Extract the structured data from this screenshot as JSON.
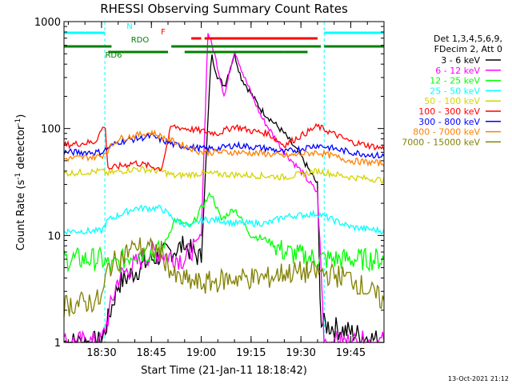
{
  "chart_data": {
    "type": "line",
    "title": "RHESSI Observing Summary Count Rates",
    "xlabel": "Start Time (21-Jan-11 18:18:42)",
    "ylabel": "Count Rate (s",
    "ylabel_sup": "-1",
    "ylabel_tail": " detector",
    "ylabel_sup2": "-1",
    "ylabel_end": ")",
    "y_scale": "log",
    "ylim": [
      1,
      1000
    ],
    "xlim": [
      "18:18:42",
      "19:55:00"
    ],
    "x_ticks": [
      "18:30",
      "18:45",
      "19:00",
      "19:15",
      "19:30",
      "19:45"
    ],
    "y_ticks": [
      "1",
      "10",
      "100",
      "1000"
    ],
    "footer_date": "13-Oct-2021 21:12",
    "legend_header": [
      "Det 1,3,4,5,6,9,",
      "FDecim 2, Att 0"
    ],
    "flags": [
      {
        "label": "N",
        "color": "#00ffff",
        "segments": [
          [
            "18:18:42",
            "18:31"
          ],
          [
            "19:37",
            "19:55"
          ]
        ]
      },
      {
        "label": "F",
        "color": "#ff0000",
        "segments": [
          [
            "18:57",
            "19:00"
          ],
          [
            "19:01",
            "19:35"
          ]
        ]
      },
      {
        "label": "RDO",
        "color": "#008000",
        "segments": [
          [
            "18:18:42",
            "18:33"
          ],
          [
            "18:51",
            "19:36"
          ],
          [
            "19:37",
            "19:55"
          ]
        ]
      },
      {
        "label": "RD6",
        "color": "#008000",
        "segments": [
          [
            "18:32",
            "18:50"
          ],
          [
            "18:55",
            "19:25"
          ],
          [
            "19:25",
            "19:32"
          ]
        ]
      }
    ],
    "series": [
      {
        "name": "3 - 6 keV",
        "color": "#000000",
        "points": [
          [
            "18:18:42",
            1.0
          ],
          [
            "18:30",
            1.0
          ],
          [
            "18:35",
            3.5
          ],
          [
            "18:45",
            6
          ],
          [
            "18:55",
            8
          ],
          [
            "19:00",
            6
          ],
          [
            "19:03",
            500
          ],
          [
            "19:05",
            300
          ],
          [
            "19:07",
            250
          ],
          [
            "19:10",
            500
          ],
          [
            "19:12",
            300
          ],
          [
            "19:18",
            150
          ],
          [
            "19:25",
            90
          ],
          [
            "19:30",
            55
          ],
          [
            "19:35",
            30
          ],
          [
            "19:36",
            1.5
          ],
          [
            "19:55",
            1.0
          ]
        ]
      },
      {
        "name": "6 - 12 keV",
        "color": "#ff00ff",
        "points": [
          [
            "18:18:42",
            1.0
          ],
          [
            "18:30",
            1.0
          ],
          [
            "18:35",
            4
          ],
          [
            "18:45",
            7
          ],
          [
            "18:55",
            6
          ],
          [
            "19:00",
            10
          ],
          [
            "19:02",
            800
          ],
          [
            "19:04",
            500
          ],
          [
            "19:07",
            200
          ],
          [
            "19:10",
            550
          ],
          [
            "19:13",
            300
          ],
          [
            "19:18",
            130
          ],
          [
            "19:25",
            60
          ],
          [
            "19:30",
            40
          ],
          [
            "19:35",
            25
          ],
          [
            "19:37",
            1.0
          ],
          [
            "19:55",
            1.0
          ]
        ]
      },
      {
        "name": "12 - 25 keV",
        "color": "#00ff00",
        "points": [
          [
            "18:18:42",
            6
          ],
          [
            "18:30",
            6
          ],
          [
            "18:33",
            5
          ],
          [
            "18:40",
            7
          ],
          [
            "18:48",
            7
          ],
          [
            "18:52",
            14
          ],
          [
            "18:57",
            12
          ],
          [
            "19:00",
            18
          ],
          [
            "19:03",
            25
          ],
          [
            "19:06",
            14
          ],
          [
            "19:10",
            18
          ],
          [
            "19:15",
            10
          ],
          [
            "19:20",
            9
          ],
          [
            "19:25",
            7
          ],
          [
            "19:35",
            6
          ],
          [
            "19:45",
            6
          ],
          [
            "19:55",
            6
          ]
        ]
      },
      {
        "name": "25 - 50 keV",
        "color": "#00ffff",
        "points": [
          [
            "18:18:42",
            11
          ],
          [
            "18:30",
            11
          ],
          [
            "18:32",
            14
          ],
          [
            "18:40",
            18
          ],
          [
            "18:48",
            18
          ],
          [
            "18:52",
            14
          ],
          [
            "18:57",
            12
          ],
          [
            "19:00",
            14
          ],
          [
            "19:05",
            14
          ],
          [
            "19:10",
            13
          ],
          [
            "19:20",
            13
          ],
          [
            "19:25",
            15
          ],
          [
            "19:35",
            16
          ],
          [
            "19:45",
            12
          ],
          [
            "19:55",
            11
          ]
        ]
      },
      {
        "name": "50 - 100 keV",
        "color": "#d4d400",
        "points": [
          [
            "18:18:42",
            38
          ],
          [
            "18:30",
            40
          ],
          [
            "18:32",
            38
          ],
          [
            "18:40",
            42
          ],
          [
            "18:48",
            40
          ],
          [
            "18:52",
            36
          ],
          [
            "19:00",
            38
          ],
          [
            "19:10",
            37
          ],
          [
            "19:20",
            36
          ],
          [
            "19:25",
            35
          ],
          [
            "19:35",
            40
          ],
          [
            "19:45",
            35
          ],
          [
            "19:55",
            33
          ]
        ]
      },
      {
        "name": "100 - 300 keV",
        "color": "#ff0000",
        "points": [
          [
            "18:18:42",
            70
          ],
          [
            "18:28",
            75
          ],
          [
            "18:31",
            110
          ],
          [
            "18:32",
            42
          ],
          [
            "18:40",
            48
          ],
          [
            "18:48",
            42
          ],
          [
            "18:51",
            105
          ],
          [
            "19:00",
            95
          ],
          [
            "19:05",
            90
          ],
          [
            "19:10",
            105
          ],
          [
            "19:15",
            95
          ],
          [
            "19:20",
            90
          ],
          [
            "19:25",
            70
          ],
          [
            "19:35",
            105
          ],
          [
            "19:45",
            75
          ],
          [
            "19:55",
            65
          ]
        ]
      },
      {
        "name": "300 - 800 keV",
        "color": "#0000ff",
        "points": [
          [
            "18:18:42",
            60
          ],
          [
            "18:30",
            60
          ],
          [
            "18:35",
            75
          ],
          [
            "18:45",
            85
          ],
          [
            "18:52",
            70
          ],
          [
            "19:00",
            65
          ],
          [
            "19:05",
            65
          ],
          [
            "19:10",
            70
          ],
          [
            "19:20",
            65
          ],
          [
            "19:25",
            60
          ],
          [
            "19:35",
            70
          ],
          [
            "19:45",
            60
          ],
          [
            "19:55",
            55
          ]
        ]
      },
      {
        "name": "800 - 7000 keV",
        "color": "#ff8000",
        "points": [
          [
            "18:18:42",
            52
          ],
          [
            "18:30",
            55
          ],
          [
            "18:35",
            80
          ],
          [
            "18:45",
            92
          ],
          [
            "18:52",
            75
          ],
          [
            "19:00",
            60
          ],
          [
            "19:10",
            60
          ],
          [
            "19:20",
            58
          ],
          [
            "19:25",
            55
          ],
          [
            "19:35",
            60
          ],
          [
            "19:45",
            50
          ],
          [
            "19:55",
            47
          ]
        ]
      },
      {
        "name": "7000 - 15000 keV",
        "color": "#808000",
        "points": [
          [
            "18:18:42",
            2.2
          ],
          [
            "18:30",
            2.5
          ],
          [
            "18:32",
            5
          ],
          [
            "18:40",
            8
          ],
          [
            "18:48",
            7
          ],
          [
            "18:52",
            4
          ],
          [
            "19:00",
            3.5
          ],
          [
            "19:10",
            4
          ],
          [
            "19:20",
            4
          ],
          [
            "19:25",
            4.5
          ],
          [
            "19:35",
            4.5
          ],
          [
            "19:45",
            4
          ],
          [
            "19:55",
            2.4
          ]
        ]
      }
    ]
  }
}
